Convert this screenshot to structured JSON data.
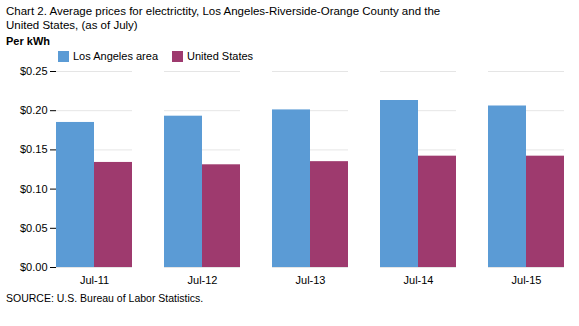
{
  "chart_data": {
    "type": "bar",
    "title": "Chart 2. Average prices for electrictity, Los Angeles-Riverside-Orange County and the\nUnited States, (as of July)",
    "ylabel": "Per kWh",
    "source": "SOURCE: U.S. Bureau of Labor Statistics.",
    "categories": [
      "Jul-11",
      "Jul-12",
      "Jul-13",
      "Jul-14",
      "Jul-15"
    ],
    "series": [
      {
        "name": "Los Angeles area",
        "color": "#5B9BD5",
        "values": [
          0.185,
          0.193,
          0.201,
          0.213,
          0.206
        ]
      },
      {
        "name": "United States",
        "color": "#9E3A6E",
        "values": [
          0.134,
          0.131,
          0.135,
          0.142,
          0.142
        ]
      }
    ],
    "ylim": [
      0,
      0.25
    ],
    "yticks": [
      {
        "value": 0,
        "label": "$0.00"
      },
      {
        "value": 0.05,
        "label": "$0.05"
      },
      {
        "value": 0.1,
        "label": "$0.10"
      },
      {
        "value": 0.15,
        "label": "$0.15"
      },
      {
        "value": 0.2,
        "label": "$0.20"
      },
      {
        "value": 0.25,
        "label": "$0.25"
      }
    ],
    "grid": true,
    "legend": "upper left"
  }
}
